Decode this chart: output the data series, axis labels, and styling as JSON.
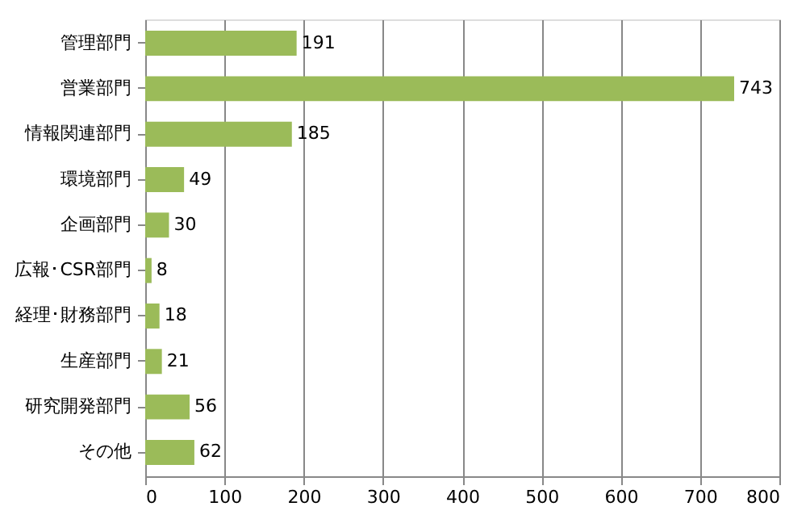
{
  "chart_data": {
    "type": "bar",
    "orientation": "horizontal",
    "categories": [
      "管理部門",
      "営業部門",
      "情報関連部門",
      "環境部門",
      "企画部門",
      "広報･CSR部門",
      "経理･財務部門",
      "生産部門",
      "研究開発部門",
      "その他"
    ],
    "values": [
      191,
      743,
      185,
      49,
      30,
      8,
      18,
      21,
      56,
      62
    ],
    "color": "#9bbb59",
    "xlim": [
      0,
      800
    ],
    "xticks": [
      0,
      100,
      200,
      300,
      400,
      500,
      600,
      700,
      800
    ],
    "grid": "x",
    "data_labels": true
  }
}
